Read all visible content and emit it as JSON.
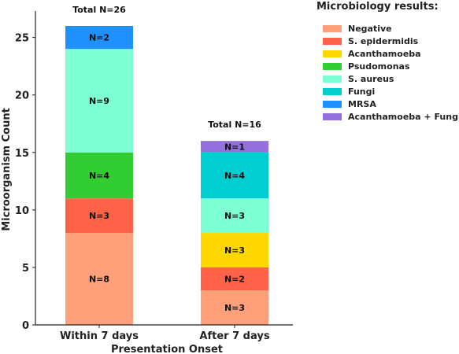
{
  "chart_data": {
    "type": "bar",
    "stacked": true,
    "categories": [
      "Within 7 days",
      "After 7 days"
    ],
    "series": [
      {
        "name": "Negative",
        "color": "#FFA07A",
        "values": [
          8,
          3
        ]
      },
      {
        "name": "S. epidermidis",
        "color": "#FF6347",
        "values": [
          3,
          2
        ]
      },
      {
        "name": "Acanthamoeba",
        "color": "#FFD700",
        "values": [
          0,
          3
        ]
      },
      {
        "name": "Psudomonas",
        "color": "#32CD32",
        "values": [
          4,
          0
        ]
      },
      {
        "name": "S. aureus",
        "color": "#7FFFD4",
        "values": [
          9,
          3
        ]
      },
      {
        "name": "Fungi",
        "color": "#00CED1",
        "values": [
          0,
          4
        ]
      },
      {
        "name": "MRSA",
        "color": "#1E90FF",
        "values": [
          2,
          0
        ]
      },
      {
        "name": "Acanthamoeba + Fungi",
        "color": "#9370DB",
        "values": [
          0,
          1
        ]
      }
    ],
    "segment_labels": [
      [
        "N=8",
        "N=3",
        "",
        "N=4",
        "N=9",
        "",
        "N=2",
        ""
      ],
      [
        "N=3",
        "N=2",
        "N=3",
        "",
        "N=3",
        "N=4",
        "",
        "N=1"
      ]
    ],
    "totals": [
      "Total N=26",
      "Total N=16"
    ],
    "xlabel": "Presentation Onset",
    "ylabel": "Microorganism Count",
    "ylim": [
      0,
      27.3
    ],
    "yticks": [
      0,
      5,
      10,
      15,
      20,
      25
    ],
    "legend_title": "Microbiology results:",
    "legend_position": "right",
    "grid": false
  }
}
